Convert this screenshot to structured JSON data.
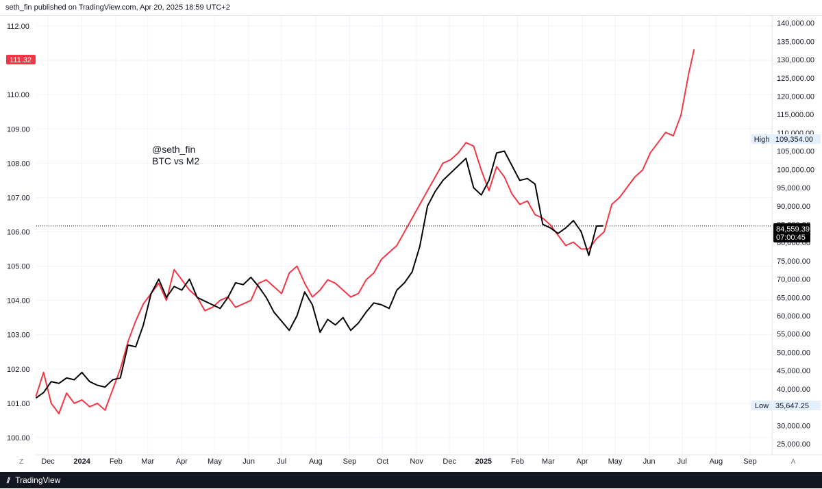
{
  "header": {
    "attribution": "seth_fin published on TradingView.com, Apr 20, 2025 18:59 UTC+2"
  },
  "footer": {
    "brand": "TradingView"
  },
  "annotation": {
    "author": "@seth_fin",
    "label": "BTC vs M2"
  },
  "scale_buttons": {
    "left": "Z",
    "right": "A"
  },
  "colors": {
    "m2": "#f23645",
    "btc": "#000000",
    "grid": "#f0f3fa"
  },
  "chart_data": {
    "type": "line",
    "title": "",
    "x_tick_labels": [
      "Dec",
      "2024",
      "Feb",
      "Mar",
      "Apr",
      "May",
      "Jun",
      "Jul",
      "Aug",
      "Sep",
      "Oct",
      "Nov",
      "Dec",
      "2025",
      "Feb",
      "Mar",
      "Apr",
      "May",
      "Jun",
      "Jul",
      "Aug",
      "Sep"
    ],
    "y_left_ticks": [
      "112.00",
      "111.00",
      "110.00",
      "109.00",
      "108.00",
      "107.00",
      "106.00",
      "105.00",
      "104.00",
      "103.00",
      "102.00",
      "101.00",
      "100.00"
    ],
    "y_right_ticks": [
      "140,000.00",
      "135,000.00",
      "130,000.00",
      "125,000.00",
      "120,000.00",
      "115,000.00",
      "110,000.00",
      "105,000.00",
      "100,000.00",
      "95,000.00",
      "90,000.00",
      "85,000.00",
      "80,000.00",
      "75,000.00",
      "70,000.00",
      "65,000.00",
      "60,000.00",
      "55,000.00",
      "50,000.00",
      "45,000.00",
      "40,000.00",
      "35,000.00",
      "30,000.00",
      "25,000.00"
    ],
    "ylim_left": [
      99.5,
      112.3
    ],
    "ylim_right": [
      22000,
      142000
    ],
    "grid": true,
    "last_value_left": "111.32",
    "last_value_right": "84,559.39",
    "countdown": "07:00:45",
    "high": {
      "label": "High",
      "value": "109,354.00"
    },
    "low": {
      "label": "Low",
      "value": "35,647.25"
    },
    "series": [
      {
        "axis": "left",
        "color": "#f23645",
        "x": [
          "2023-11-20",
          "2023-11-27",
          "2023-12-04",
          "2023-12-11",
          "2023-12-18",
          "2023-12-25",
          "2024-01-01",
          "2024-01-08",
          "2024-01-15",
          "2024-01-22",
          "2024-01-29",
          "2024-02-05",
          "2024-02-12",
          "2024-02-19",
          "2024-02-26",
          "2024-03-04",
          "2024-03-11",
          "2024-03-18",
          "2024-03-25",
          "2024-04-01",
          "2024-04-08",
          "2024-04-15",
          "2024-04-22",
          "2024-04-29",
          "2024-05-06",
          "2024-05-13",
          "2024-05-20",
          "2024-05-27",
          "2024-06-03",
          "2024-06-10",
          "2024-06-17",
          "2024-06-24",
          "2024-07-01",
          "2024-07-08",
          "2024-07-15",
          "2024-07-22",
          "2024-07-29",
          "2024-08-05",
          "2024-08-12",
          "2024-08-19",
          "2024-08-26",
          "2024-09-02",
          "2024-09-09",
          "2024-09-16",
          "2024-09-23",
          "2024-09-30",
          "2024-10-07",
          "2024-10-14",
          "2024-10-21",
          "2024-10-28",
          "2024-11-04",
          "2024-11-11",
          "2024-11-18",
          "2024-11-25",
          "2024-12-02",
          "2024-12-09",
          "2024-12-16",
          "2024-12-23",
          "2024-12-30",
          "2025-01-06",
          "2025-01-13",
          "2025-01-20",
          "2025-01-27",
          "2025-02-03",
          "2025-02-10",
          "2025-02-17",
          "2025-02-24",
          "2025-03-03",
          "2025-03-10",
          "2025-03-17",
          "2025-03-24",
          "2025-03-31",
          "2025-04-07",
          "2025-04-14",
          "2025-04-21",
          "2025-04-28",
          "2025-05-05",
          "2025-05-12",
          "2025-05-19",
          "2025-05-26",
          "2025-06-02",
          "2025-06-09",
          "2025-06-16",
          "2025-06-23",
          "2025-06-30",
          "2025-07-07",
          "2025-07-12"
        ],
        "y": [
          101.2,
          101.9,
          101.0,
          100.7,
          101.3,
          101.0,
          101.1,
          100.9,
          101.0,
          100.8,
          101.4,
          102.0,
          102.8,
          103.4,
          103.9,
          104.2,
          104.5,
          104.0,
          104.9,
          104.6,
          104.3,
          104.1,
          103.7,
          103.8,
          104.0,
          104.1,
          103.8,
          103.9,
          104.0,
          104.5,
          104.6,
          104.4,
          104.2,
          104.8,
          105.0,
          104.5,
          104.1,
          104.3,
          104.6,
          104.5,
          104.3,
          104.1,
          104.2,
          104.6,
          104.8,
          105.2,
          105.4,
          105.6,
          106.0,
          106.4,
          106.8,
          107.2,
          107.6,
          108.0,
          108.1,
          108.3,
          108.6,
          108.5,
          107.8,
          107.2,
          107.9,
          107.6,
          107.1,
          106.8,
          106.9,
          106.5,
          106.4,
          106.2,
          105.9,
          105.6,
          105.7,
          105.5,
          105.5,
          105.8,
          106.0,
          106.8,
          107.0,
          107.3,
          107.6,
          107.8,
          108.3,
          108.6,
          108.9,
          108.8,
          109.4,
          110.6,
          111.32
        ]
      },
      {
        "axis": "right",
        "color": "#000000",
        "x": [
          "2023-11-20",
          "2023-11-27",
          "2023-12-04",
          "2023-12-11",
          "2023-12-18",
          "2023-12-25",
          "2024-01-01",
          "2024-01-08",
          "2024-01-15",
          "2024-01-22",
          "2024-01-29",
          "2024-02-05",
          "2024-02-12",
          "2024-02-19",
          "2024-02-26",
          "2024-03-04",
          "2024-03-11",
          "2024-03-18",
          "2024-03-25",
          "2024-04-01",
          "2024-04-08",
          "2024-04-15",
          "2024-04-22",
          "2024-04-29",
          "2024-05-06",
          "2024-05-13",
          "2024-05-20",
          "2024-05-27",
          "2024-06-03",
          "2024-06-10",
          "2024-06-17",
          "2024-06-24",
          "2024-07-01",
          "2024-07-08",
          "2024-07-15",
          "2024-07-22",
          "2024-07-29",
          "2024-08-05",
          "2024-08-12",
          "2024-08-19",
          "2024-08-26",
          "2024-09-02",
          "2024-09-09",
          "2024-09-16",
          "2024-09-23",
          "2024-09-30",
          "2024-10-07",
          "2024-10-14",
          "2024-10-21",
          "2024-10-28",
          "2024-11-04",
          "2024-11-11",
          "2024-11-18",
          "2024-11-25",
          "2024-12-02",
          "2024-12-09",
          "2024-12-16",
          "2024-12-23",
          "2024-12-30",
          "2025-01-06",
          "2025-01-13",
          "2025-01-20",
          "2025-01-27",
          "2025-02-03",
          "2025-02-10",
          "2025-02-17",
          "2025-02-24",
          "2025-03-03",
          "2025-03-10",
          "2025-03-17",
          "2025-03-24",
          "2025-03-31",
          "2025-04-07",
          "2025-04-14",
          "2025-04-20"
        ],
        "y": [
          37500,
          39000,
          42000,
          41500,
          43000,
          42500,
          44500,
          42000,
          41000,
          40500,
          42500,
          43000,
          52000,
          51500,
          57500,
          66000,
          70000,
          65000,
          68000,
          67000,
          70000,
          65000,
          64000,
          63000,
          62000,
          65000,
          69000,
          68500,
          70500,
          68000,
          65000,
          61000,
          58500,
          56000,
          60000,
          66500,
          63000,
          55500,
          59000,
          57500,
          59500,
          56000,
          58000,
          61000,
          63500,
          63000,
          62000,
          67000,
          69000,
          72000,
          79000,
          90000,
          94000,
          97000,
          99000,
          101000,
          103000,
          95000,
          93000,
          97000,
          104500,
          105000,
          101000,
          97000,
          97500,
          96000,
          85000,
          84000,
          82500,
          84000,
          86000,
          83000,
          76500,
          84500,
          84559
        ]
      }
    ]
  }
}
